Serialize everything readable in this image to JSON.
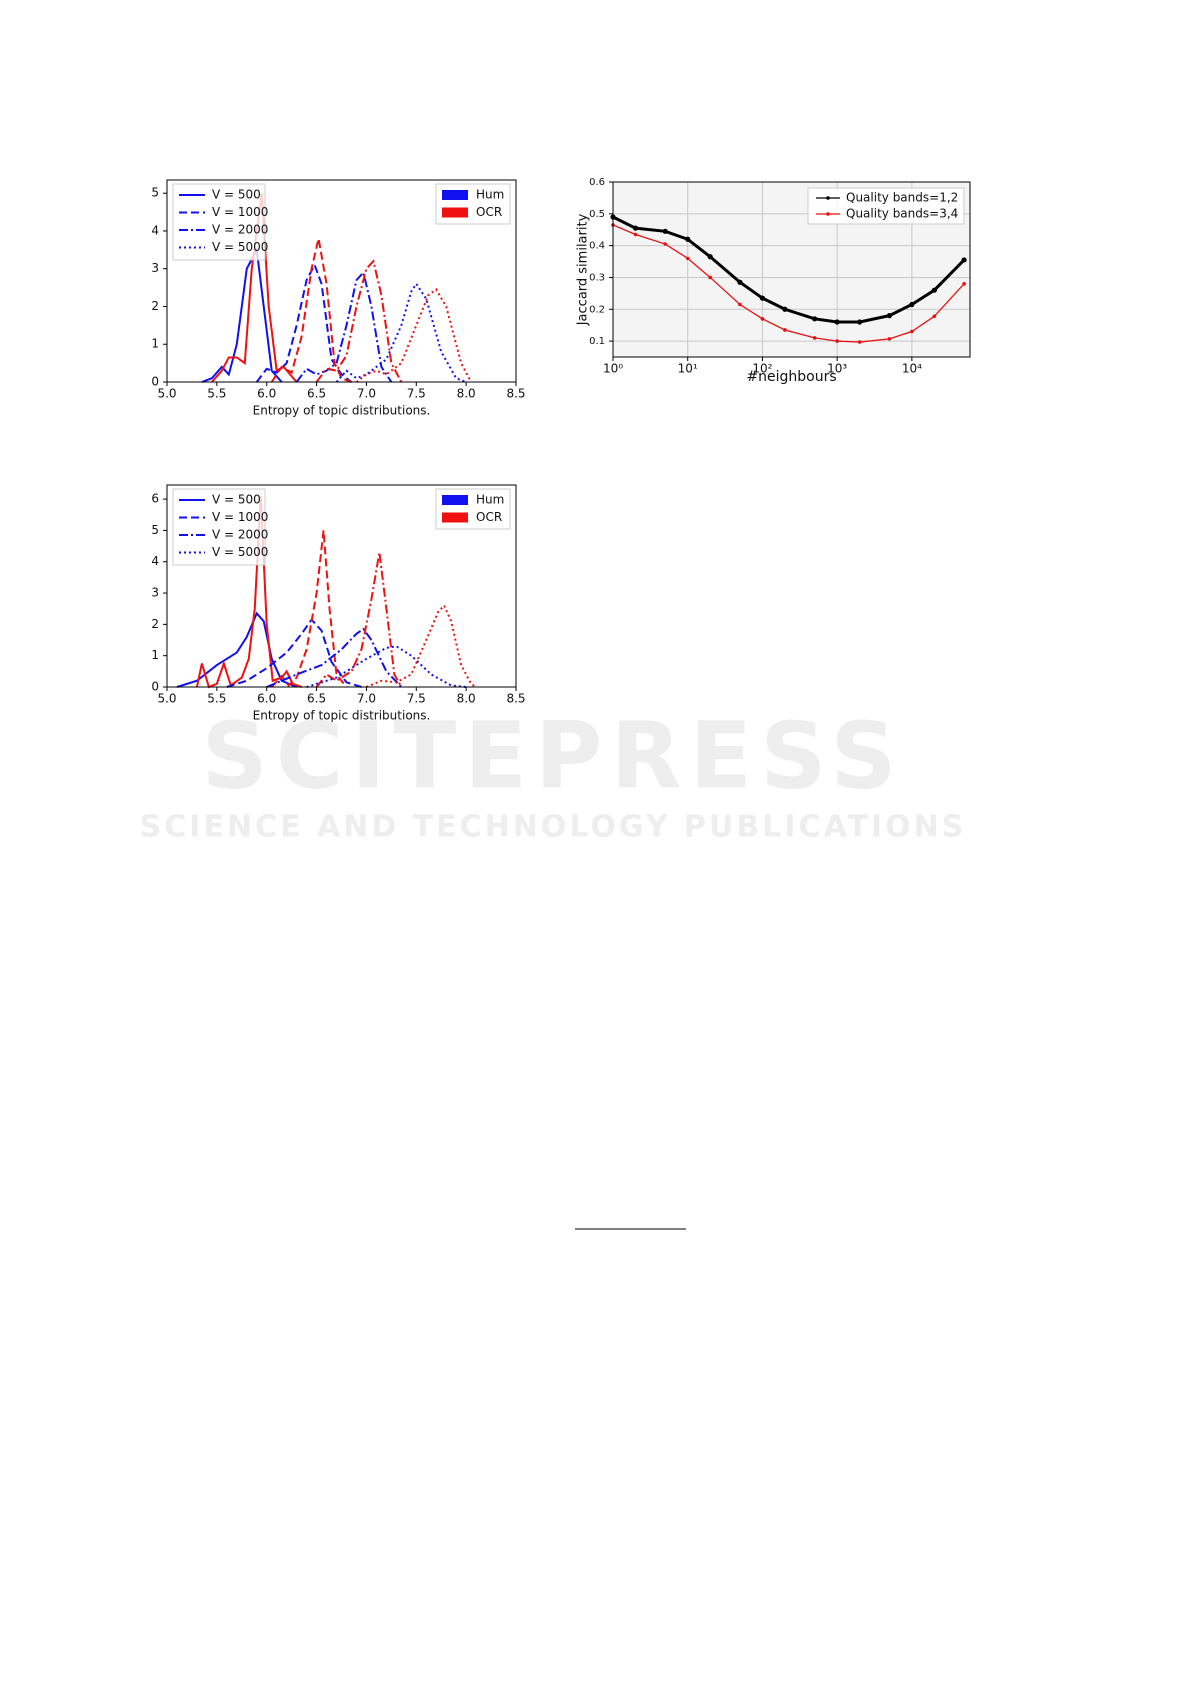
{
  "chart_data": [
    {
      "type": "line",
      "xlabel": "Entropy of topic distributions.",
      "xlim": [
        5,
        8.5
      ],
      "ylim": [
        0,
        5.35
      ],
      "xticks": [
        {
          "value": 5,
          "label": "5.0"
        },
        5.5,
        {
          "value": 6,
          "label": "6.0"
        },
        6.5,
        {
          "value": 7,
          "label": "7.0"
        },
        7.5,
        {
          "value": 8,
          "label": "8.0"
        },
        8.5
      ],
      "yticks": [
        0,
        1,
        2,
        3,
        4,
        5
      ],
      "legend_styles": [
        {
          "label": "V = 500",
          "dash": "solid"
        },
        {
          "label": "V = 1000",
          "dash": "dashed"
        },
        {
          "label": "V = 2000",
          "dash": "dashdot"
        },
        {
          "label": "V = 5000",
          "dash": "dotted"
        }
      ],
      "legend_colors": [
        {
          "label": "Hum",
          "color": "#1010f0"
        },
        {
          "label": "OCR",
          "color": "#f01010"
        }
      ],
      "series": [
        {
          "color": "#1010f0",
          "dash": "solid",
          "x": [
            5.35,
            5.45,
            5.55,
            5.62,
            5.7,
            5.8,
            5.9,
            5.97,
            6.05,
            6.15
          ],
          "values": [
            0,
            0.1,
            0.4,
            0.2,
            1.0,
            3.0,
            3.5,
            2.0,
            0.3,
            0
          ]
        },
        {
          "color": "#f01010",
          "dash": "solid",
          "x": [
            5.45,
            5.55,
            5.62,
            5.7,
            5.78,
            5.85,
            5.95,
            6.02,
            6.1,
            6.17,
            6.3
          ],
          "values": [
            0,
            0.3,
            0.65,
            0.65,
            0.5,
            3.0,
            5.0,
            2.0,
            0.3,
            0.4,
            0
          ]
        },
        {
          "color": "#1010f0",
          "dash": "dashed",
          "x": [
            5.9,
            6.0,
            6.1,
            6.2,
            6.3,
            6.4,
            6.48,
            6.55,
            6.65,
            6.75,
            6.85
          ],
          "values": [
            0,
            0.35,
            0.25,
            0.5,
            1.5,
            2.7,
            3.1,
            2.6,
            0.6,
            0.2,
            0
          ]
        },
        {
          "color": "#f01010",
          "dash": "dashed",
          "x": [
            6.05,
            6.15,
            6.25,
            6.35,
            6.45,
            6.52,
            6.6,
            6.68,
            6.75,
            6.85
          ],
          "values": [
            0,
            0.4,
            0.25,
            1.2,
            3.0,
            3.8,
            2.6,
            0.5,
            0.1,
            0
          ]
        },
        {
          "color": "#1010f0",
          "dash": "dashdot",
          "x": [
            6.3,
            6.4,
            6.5,
            6.6,
            6.7,
            6.8,
            6.9,
            6.97,
            7.05,
            7.15,
            7.25
          ],
          "values": [
            0,
            0.35,
            0.2,
            0.3,
            0.5,
            1.5,
            2.7,
            2.9,
            2.0,
            0.4,
            0
          ]
        },
        {
          "color": "#f01010",
          "dash": "dashdot",
          "x": [
            6.5,
            6.6,
            6.7,
            6.8,
            6.9,
            7.0,
            7.07,
            7.15,
            7.25,
            7.35
          ],
          "values": [
            0,
            0.35,
            0.3,
            0.7,
            2.0,
            3.0,
            3.2,
            2.3,
            0.5,
            0
          ]
        },
        {
          "color": "#1010f0",
          "dash": "dotted",
          "x": [
            6.7,
            6.8,
            6.9,
            7.0,
            7.2,
            7.35,
            7.45,
            7.5,
            7.6,
            7.75,
            7.9,
            8.0
          ],
          "values": [
            0,
            0.3,
            0.1,
            0.2,
            0.6,
            1.5,
            2.4,
            2.6,
            2.2,
            0.8,
            0.1,
            0
          ]
        },
        {
          "color": "#f01010",
          "dash": "dotted",
          "x": [
            6.9,
            7.0,
            7.1,
            7.2,
            7.35,
            7.5,
            7.62,
            7.7,
            7.8,
            7.95,
            8.05
          ],
          "values": [
            0,
            0.2,
            0.3,
            0.2,
            0.5,
            1.5,
            2.3,
            2.45,
            2.0,
            0.5,
            0
          ]
        }
      ]
    },
    {
      "type": "line",
      "xlabel": "Entropy of topic distributions.",
      "xlim": [
        5,
        8.5
      ],
      "ylim": [
        0,
        6.45
      ],
      "xticks": [
        {
          "value": 5,
          "label": "5.0"
        },
        5.5,
        {
          "value": 6,
          "label": "6.0"
        },
        6.5,
        {
          "value": 7,
          "label": "7.0"
        },
        7.5,
        {
          "value": 8,
          "label": "8.0"
        },
        8.5
      ],
      "yticks": [
        0,
        1,
        2,
        3,
        4,
        5,
        6
      ],
      "legend_styles": [
        {
          "label": "V = 500",
          "dash": "solid"
        },
        {
          "label": "V = 1000",
          "dash": "dashed"
        },
        {
          "label": "V = 2000",
          "dash": "dashdot"
        },
        {
          "label": "V = 5000",
          "dash": "dotted"
        }
      ],
      "legend_colors": [
        {
          "label": "Hum",
          "color": "#1010f0"
        },
        {
          "label": "OCR",
          "color": "#f01010"
        }
      ],
      "series": [
        {
          "color": "#1010f0",
          "dash": "solid",
          "x": [
            5.1,
            5.3,
            5.5,
            5.7,
            5.8,
            5.9,
            5.97,
            6.05,
            6.15,
            6.3
          ],
          "values": [
            0,
            0.2,
            0.7,
            1.1,
            1.6,
            2.35,
            2.1,
            0.9,
            0.2,
            0
          ]
        },
        {
          "color": "#f01010",
          "dash": "solid",
          "x": [
            5.3,
            5.35,
            5.42,
            5.5,
            5.57,
            5.64,
            5.75,
            5.82,
            5.88,
            5.94,
            6.0,
            6.06,
            6.15,
            6.2,
            6.26,
            6.35
          ],
          "values": [
            0,
            0.75,
            0,
            0.1,
            0.75,
            0.05,
            0.3,
            0.9,
            2.5,
            6.1,
            2.0,
            0.2,
            0.3,
            0.5,
            0.1,
            0
          ]
        },
        {
          "color": "#1010f0",
          "dash": "dashed",
          "x": [
            5.6,
            5.8,
            6.0,
            6.2,
            6.35,
            6.45,
            6.55,
            6.65,
            6.8,
            6.95
          ],
          "values": [
            0,
            0.2,
            0.6,
            1.1,
            1.7,
            2.15,
            1.8,
            0.8,
            0.15,
            0
          ]
        },
        {
          "color": "#f01010",
          "dash": "dashed",
          "x": [
            6.05,
            6.15,
            6.22,
            6.3,
            6.4,
            6.5,
            6.57,
            6.63,
            6.7,
            6.8
          ],
          "values": [
            0,
            0.35,
            0.05,
            0.3,
            1.2,
            3.0,
            5.0,
            2.5,
            0.4,
            0
          ]
        },
        {
          "color": "#1010f0",
          "dash": "dashdot",
          "x": [
            6.0,
            6.3,
            6.55,
            6.75,
            6.9,
            6.97,
            7.05,
            7.2,
            7.35
          ],
          "values": [
            0,
            0.4,
            0.7,
            1.2,
            1.7,
            1.85,
            1.5,
            0.5,
            0
          ]
        },
        {
          "color": "#f01010",
          "dash": "dashdot",
          "x": [
            6.5,
            6.6,
            6.7,
            6.85,
            6.95,
            7.05,
            7.13,
            7.2,
            7.28,
            7.35
          ],
          "values": [
            0,
            0.4,
            0.2,
            0.5,
            1.2,
            2.8,
            4.3,
            2.5,
            0.4,
            0
          ]
        },
        {
          "color": "#1010f0",
          "dash": "dotted",
          "x": [
            6.4,
            6.7,
            7.0,
            7.2,
            7.3,
            7.45,
            7.65,
            7.85,
            8.0
          ],
          "values": [
            0,
            0.3,
            0.9,
            1.25,
            1.3,
            1.0,
            0.4,
            0.05,
            0
          ]
        },
        {
          "color": "#f01010",
          "dash": "dotted",
          "x": [
            7.0,
            7.15,
            7.3,
            7.45,
            7.6,
            7.72,
            7.78,
            7.85,
            7.95,
            8.05,
            8.1
          ],
          "values": [
            0,
            0.2,
            0.15,
            0.4,
            1.5,
            2.4,
            2.6,
            2.1,
            0.7,
            0.1,
            0
          ]
        }
      ]
    },
    {
      "type": "line",
      "xscale": "log",
      "grid": true,
      "markers": true,
      "xlabel": "#neighbours",
      "ylabel": "Jaccard similarity",
      "xlim": [
        1,
        60000
      ],
      "ylim": [
        0.05,
        0.6
      ],
      "xticks": [
        {
          "value": 1,
          "label": "10⁰"
        },
        {
          "value": 10,
          "label": "10¹"
        },
        {
          "value": 100,
          "label": "10²"
        },
        {
          "value": 1000,
          "label": "10³"
        },
        {
          "value": 10000,
          "label": "10⁴"
        }
      ],
      "yticks": [
        0.1,
        0.2,
        0.3,
        0.4,
        0.5,
        0.6
      ],
      "x": [
        1,
        2,
        5,
        10,
        20,
        50,
        100,
        200,
        500,
        1000,
        2000,
        5000,
        10000,
        20000,
        50000
      ],
      "series": [
        {
          "name": "Quality bands=1,2",
          "color": "#000000",
          "width": 3,
          "values": [
            0.49,
            0.455,
            0.445,
            0.42,
            0.365,
            0.285,
            0.235,
            0.2,
            0.17,
            0.16,
            0.16,
            0.18,
            0.215,
            0.26,
            0.355
          ]
        },
        {
          "name": "Quality bands=3,4",
          "color": "#e81010",
          "width": 1.3,
          "values": [
            0.465,
            0.435,
            0.405,
            0.36,
            0.3,
            0.215,
            0.17,
            0.135,
            0.11,
            0.1,
            0.097,
            0.107,
            0.13,
            0.178,
            0.28
          ]
        }
      ]
    }
  ],
  "watermark": {
    "title": "SCITEPRESS",
    "subtitle": "SCIENCE AND TECHNOLOGY PUBLICATIONS"
  }
}
